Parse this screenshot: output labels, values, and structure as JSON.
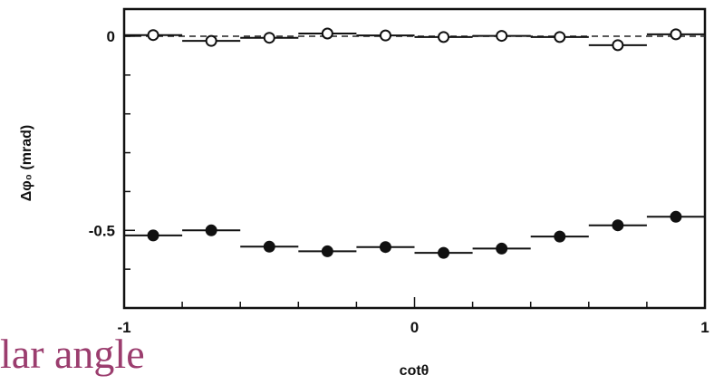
{
  "chart_data": {
    "type": "scatter",
    "xlabel": "cotθ",
    "ylabel": "Δφ₀ (mrad)",
    "xlim": [
      -1,
      1
    ],
    "ylim": [
      -0.7,
      0.07
    ],
    "x_ticks": [
      {
        "value": -1,
        "label": "-1"
      },
      {
        "value": 0,
        "label": "0"
      },
      {
        "value": 1,
        "label": "1"
      }
    ],
    "y_ticks": [
      {
        "value": 0,
        "label": "0"
      },
      {
        "value": -0.5,
        "label": "-0.5"
      }
    ],
    "reference_line": {
      "y": 0,
      "style": "dashed"
    },
    "x_bin_halfwidth": 0.1,
    "series": [
      {
        "marker": "open-circle",
        "x": [
          -0.9,
          -0.7,
          -0.5,
          -0.3,
          -0.1,
          0.1,
          0.3,
          0.5,
          0.7,
          0.9
        ],
        "y": [
          0.003,
          -0.012,
          -0.004,
          0.007,
          0.002,
          -0.002,
          0.001,
          -0.002,
          -0.023,
          0.005
        ]
      },
      {
        "marker": "filled-circle",
        "x": [
          -0.9,
          -0.7,
          -0.5,
          -0.3,
          -0.1,
          0.1,
          0.3,
          0.5,
          0.7,
          0.9
        ],
        "y": [
          -0.513,
          -0.5,
          -0.542,
          -0.554,
          -0.543,
          -0.558,
          -0.547,
          -0.516,
          -0.487,
          -0.465
        ]
      }
    ]
  },
  "caption_fragment": "lar angle"
}
